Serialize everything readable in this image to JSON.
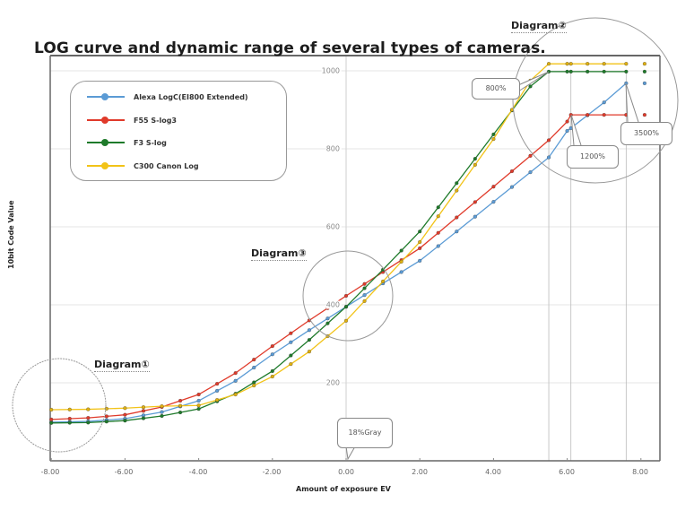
{
  "title": "LOG curve and dynamic range of several types of cameras.",
  "annotations": {
    "diagram1": "Diagram①",
    "diagram2": "Diagram②",
    "diagram3": "Diagram③",
    "gray18": "18%Gray",
    "p800": "800%",
    "p1200": "1200%",
    "p3500": "3500%"
  },
  "axes": {
    "xlabel": "Amount of exposure EV",
    "ylabel": "10bit Code Value",
    "xticks": [
      "-8.00",
      "-6.00",
      "-4.00",
      "-2.00",
      "0.00",
      "2.00",
      "4.00",
      "6.00",
      "8.00"
    ],
    "yticks": [
      "200",
      "400",
      "600",
      "800",
      "1000"
    ]
  },
  "legend": [
    {
      "label": "Alexa LogC(EI800 Extended)",
      "color": "#5b9bd5"
    },
    {
      "label": "F55 S-log3",
      "color": "#e03a2a"
    },
    {
      "label": "F3 S-log",
      "color": "#1e7a2a"
    },
    {
      "label": "C300 Canon Log",
      "color": "#f2c318"
    }
  ],
  "chart_data": {
    "type": "line",
    "title": "LOG curve and dynamic range of several types of cameras.",
    "xlabel": "Amount of exposure EV",
    "ylabel": "10bit Code Value",
    "xlim": [
      -8,
      8.6
    ],
    "ylim": [
      0,
      1023
    ],
    "grid": true,
    "legend_position": "upper-left",
    "x": [
      -8,
      -7,
      -6,
      -5,
      -4,
      -3,
      -2,
      -1,
      0,
      1,
      2,
      3,
      4,
      5,
      5.5,
      6,
      6.1,
      7,
      7.6,
      8.6
    ],
    "series": [
      {
        "name": "Alexa LogC(EI800 Extended)",
        "color": "#5b9bd5",
        "values": [
          99,
          101,
          108,
          125,
          154,
          205,
          273,
          335,
          395,
          455,
          513,
          588,
          664,
          740,
          778,
          846,
          853,
          919,
          968,
          968
        ]
      },
      {
        "name": "F55 S-log3",
        "color": "#e03a2a",
        "values": [
          106,
          110,
          118,
          138,
          170,
          225,
          294,
          360,
          423,
          484,
          545,
          624,
          703,
          782,
          822,
          870,
          887,
          887,
          887,
          887
        ]
      },
      {
        "name": "F3 S-log",
        "color": "#1e7a2a",
        "values": [
          97,
          98,
          103,
          115,
          133,
          172,
          230,
          310,
          395,
          490,
          588,
          712,
          837,
          960,
          998,
          998,
          998,
          998,
          998,
          998
        ]
      },
      {
        "name": "C300 Canon Log",
        "color": "#f2c318",
        "values": [
          131,
          132,
          135,
          140,
          142,
          170,
          216,
          280,
          359,
          460,
          561,
          693,
          825,
          975,
          1018,
          1018,
          1018,
          1018,
          1018,
          1018
        ]
      }
    ],
    "annotations": [
      {
        "text": "Diagram①",
        "target": "shadow region near -8 EV"
      },
      {
        "text": "Diagram②",
        "target": "highlight clipping region"
      },
      {
        "text": "Diagram③",
        "target": "18% gray region near 0 EV"
      },
      {
        "text": "18%Gray",
        "x": 0
      },
      {
        "text": "800%",
        "series": "F3 S-log / C300 Canon Log",
        "x": 5.5
      },
      {
        "text": "1200%",
        "series": "F55 S-log3",
        "x": 6.1
      },
      {
        "text": "3500%",
        "series": "Alexa LogC(EI800 Extended)",
        "x": 7.6
      }
    ]
  }
}
